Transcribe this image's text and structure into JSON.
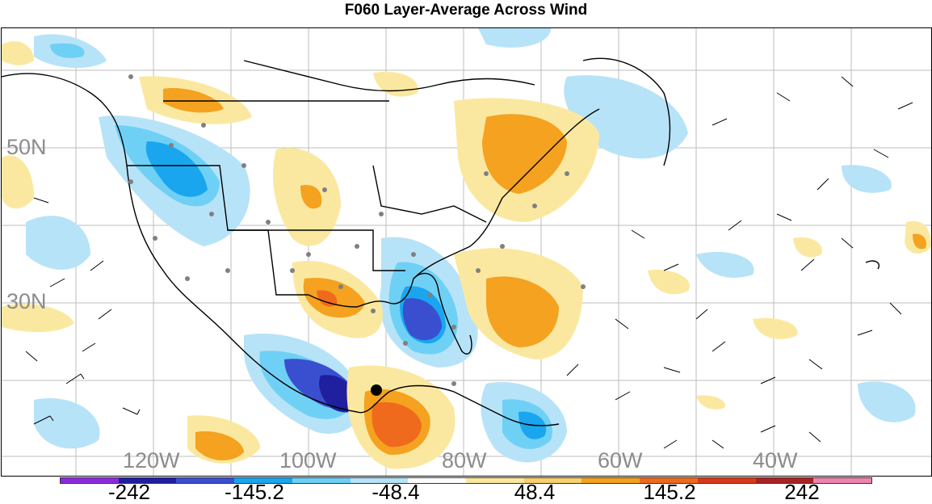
{
  "title": "F060 Layer-Average Across Wind",
  "map": {
    "lat_labels": [
      "50N",
      "30N"
    ],
    "lon_labels": [
      "120W",
      "100W",
      "80W",
      "60W",
      "40W"
    ],
    "selected_point_icon": "black-dot-marker"
  },
  "colorbar": {
    "labels": [
      "-242",
      "-145.2",
      "-48.4",
      "48.4",
      "145.2",
      "242"
    ],
    "colors": [
      "#8b2be0",
      "#1f1fa0",
      "#3a4fd0",
      "#1aa6ef",
      "#6fd0f5",
      "#b7e3f8",
      "#ffffff",
      "#fbe8a0",
      "#f7d070",
      "#f4a21f",
      "#ef6a1d",
      "#d83a1a",
      "#a82222",
      "#ee84b0"
    ]
  }
}
